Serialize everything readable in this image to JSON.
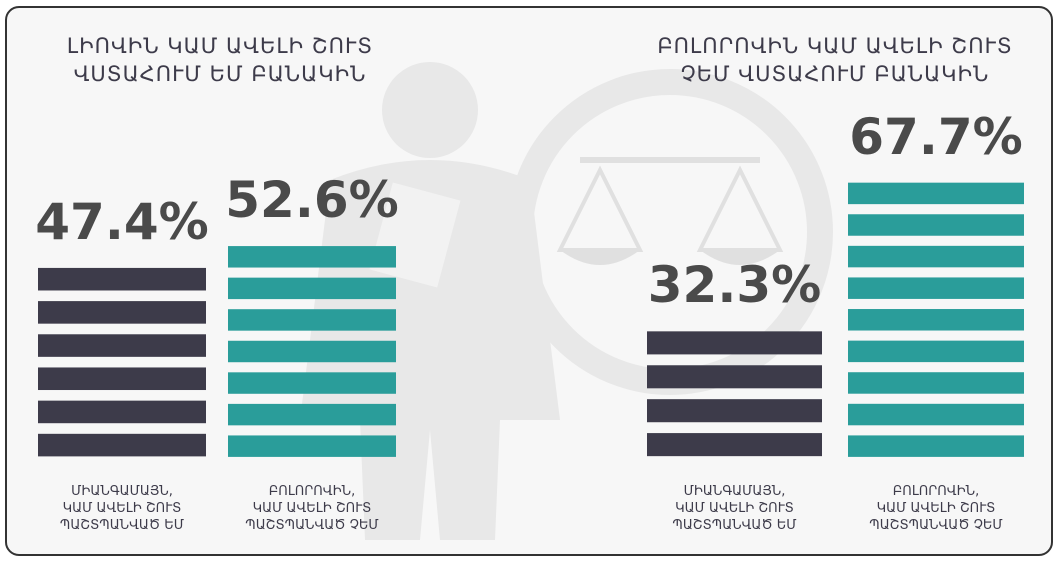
{
  "chart_data": [
    {
      "type": "bar",
      "title": "ԼԻՈՎԻՆ ԿԱՄ ԱՎԵԼԻ ՇՈՒՏ\nՎՍՏԱՀՈՒՄ ԵՄ ԲԱՆԱԿԻՆ",
      "categories": [
        "ՄԻԱՆԳԱՄԱՅՆ,\nԿԱՄ ԱՎԵԼԻ ՇՈՒՏ\nՊԱՇՏՊԱՆՎԱԾ ԵՄ",
        "ԲՈԼՈՐՈՎԻՆ,\nԿԱՄ ԱՎԵԼԻ ՇՈՒՏ\nՊԱՇՏՊԱՆՎԱԾ ՉԵՄ"
      ],
      "values": [
        47.4,
        52.6
      ],
      "value_labels": [
        "47.4%",
        "52.6%"
      ],
      "colors": [
        "#3d3b4a",
        "#2a9d9a"
      ]
    },
    {
      "type": "bar",
      "title": "ԲՈԼՈՐՈՎԻՆ ԿԱՄ ԱՎԵԼԻ ՇՈՒՏ\nՉԵՄ ՎՍՏԱՀՈՒՄ ԲԱՆԱԿԻՆ",
      "categories": [
        "ՄԻԱՆԳԱՄԱՅՆ,\nԿԱՄ ԱՎԵԼԻ ՇՈՒՏ\nՊԱՇՏՊԱՆՎԱԾ ԵՄ",
        "ԲՈԼՈՐՈՎԻՆ,\nԿԱՄ ԱՎԵԼԻ ՇՈՒՏ\nՊԱՇՏՊԱՆՎԱԾ ՉԵՄ"
      ],
      "values": [
        32.3,
        67.7
      ],
      "value_labels": [
        "32.3%",
        "67.7%"
      ],
      "colors": [
        "#3d3b4a",
        "#2a9d9a"
      ]
    }
  ]
}
